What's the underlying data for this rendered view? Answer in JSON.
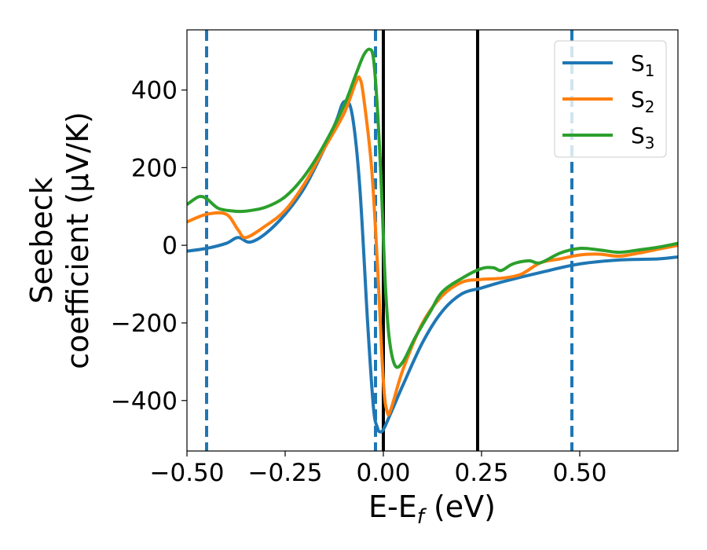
{
  "chart_data": {
    "type": "line",
    "title": "",
    "xlabel": "E-E",
    "xlabel_sub": "f",
    "xlabel_unit": " (eV)",
    "ylabel_line1": "Seebeck",
    "ylabel_line2": "coefficient  (μV/K)",
    "xlim": [
      -0.5,
      0.75
    ],
    "ylim": [
      -530,
      555
    ],
    "xticks": [
      -0.5,
      -0.25,
      0.0,
      0.25,
      0.5
    ],
    "xtick_labels": [
      "−0.50",
      "−0.25",
      "0.00",
      "0.25",
      "0.50"
    ],
    "yticks": [
      -400,
      -200,
      0,
      200,
      400
    ],
    "ytick_labels": [
      "−400",
      "−200",
      "0",
      "200",
      "400"
    ],
    "grid": false,
    "legend_position": "top-right",
    "series": [
      {
        "name": "S",
        "name_sub": "1",
        "color": "#1f77b4",
        "points": [
          [
            -0.5,
            -15
          ],
          [
            -0.45,
            -8
          ],
          [
            -0.4,
            5
          ],
          [
            -0.37,
            20
          ],
          [
            -0.34,
            8
          ],
          [
            -0.3,
            30
          ],
          [
            -0.25,
            80
          ],
          [
            -0.2,
            150
          ],
          [
            -0.15,
            250
          ],
          [
            -0.12,
            320
          ],
          [
            -0.1,
            370
          ],
          [
            -0.08,
            340
          ],
          [
            -0.06,
            150
          ],
          [
            -0.04,
            -200
          ],
          [
            -0.025,
            -420
          ],
          [
            -0.015,
            -470
          ],
          [
            -0.01,
            -480
          ],
          [
            0.0,
            -475
          ],
          [
            0.02,
            -430
          ],
          [
            0.05,
            -360
          ],
          [
            0.1,
            -250
          ],
          [
            0.15,
            -170
          ],
          [
            0.2,
            -125
          ],
          [
            0.25,
            -110
          ],
          [
            0.3,
            -95
          ],
          [
            0.4,
            -70
          ],
          [
            0.5,
            -48
          ],
          [
            0.6,
            -38
          ],
          [
            0.7,
            -35
          ],
          [
            0.75,
            -30
          ]
        ]
      },
      {
        "name": "S",
        "name_sub": "2",
        "color": "#ff7f0e",
        "points": [
          [
            -0.5,
            60
          ],
          [
            -0.45,
            80
          ],
          [
            -0.4,
            80
          ],
          [
            -0.37,
            40
          ],
          [
            -0.35,
            20
          ],
          [
            -0.3,
            50
          ],
          [
            -0.25,
            90
          ],
          [
            -0.2,
            160
          ],
          [
            -0.15,
            250
          ],
          [
            -0.1,
            340
          ],
          [
            -0.07,
            420
          ],
          [
            -0.06,
            430
          ],
          [
            -0.05,
            380
          ],
          [
            -0.03,
            200
          ],
          [
            -0.015,
            -50
          ],
          [
            0.0,
            -350
          ],
          [
            0.01,
            -430
          ],
          [
            0.02,
            -420
          ],
          [
            0.05,
            -320
          ],
          [
            0.1,
            -200
          ],
          [
            0.15,
            -130
          ],
          [
            0.2,
            -95
          ],
          [
            0.25,
            -88
          ],
          [
            0.3,
            -85
          ],
          [
            0.35,
            -75
          ],
          [
            0.4,
            -45
          ],
          [
            0.45,
            -35
          ],
          [
            0.5,
            -25
          ],
          [
            0.55,
            -23
          ],
          [
            0.6,
            -28
          ],
          [
            0.65,
            -20
          ],
          [
            0.7,
            -10
          ],
          [
            0.75,
            0
          ]
        ]
      },
      {
        "name": "S",
        "name_sub": "3",
        "color": "#2ca02c",
        "points": [
          [
            -0.5,
            105
          ],
          [
            -0.47,
            125
          ],
          [
            -0.45,
            120
          ],
          [
            -0.42,
            95
          ],
          [
            -0.38,
            88
          ],
          [
            -0.35,
            88
          ],
          [
            -0.3,
            98
          ],
          [
            -0.25,
            125
          ],
          [
            -0.2,
            180
          ],
          [
            -0.15,
            260
          ],
          [
            -0.1,
            360
          ],
          [
            -0.07,
            440
          ],
          [
            -0.05,
            490
          ],
          [
            -0.035,
            505
          ],
          [
            -0.025,
            480
          ],
          [
            -0.015,
            350
          ],
          [
            -0.005,
            150
          ],
          [
            0.005,
            -100
          ],
          [
            0.015,
            -240
          ],
          [
            0.03,
            -310
          ],
          [
            0.05,
            -300
          ],
          [
            0.08,
            -240
          ],
          [
            0.12,
            -170
          ],
          [
            0.15,
            -120
          ],
          [
            0.2,
            -85
          ],
          [
            0.25,
            -60
          ],
          [
            0.28,
            -58
          ],
          [
            0.3,
            -65
          ],
          [
            0.33,
            -48
          ],
          [
            0.37,
            -40
          ],
          [
            0.4,
            -45
          ],
          [
            0.45,
            -20
          ],
          [
            0.5,
            -8
          ],
          [
            0.55,
            -12
          ],
          [
            0.6,
            -18
          ],
          [
            0.65,
            -12
          ],
          [
            0.7,
            -5
          ],
          [
            0.75,
            5
          ]
        ]
      }
    ],
    "vlines": [
      {
        "x": -0.45,
        "style": "dashed",
        "color": "#1f77b4"
      },
      {
        "x": -0.02,
        "style": "dashed",
        "color": "#1f77b4"
      },
      {
        "x": 0.0,
        "style": "solid",
        "color": "#000000"
      },
      {
        "x": 0.24,
        "style": "solid",
        "color": "#000000"
      },
      {
        "x": 0.48,
        "style": "dashed",
        "color": "#1f77b4"
      }
    ]
  }
}
